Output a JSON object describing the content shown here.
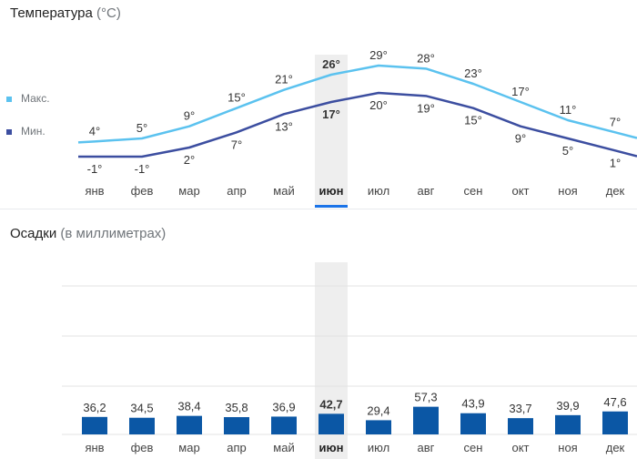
{
  "temperature": {
    "title": "Температура",
    "unit": "(°C)",
    "legend": [
      {
        "key": "max",
        "label": "Макс.",
        "color": "#5bc2ef"
      },
      {
        "key": "min",
        "label": "Мин.",
        "color": "#3c4ea0"
      }
    ]
  },
  "precipitation": {
    "title": "Осадки",
    "unit": "(в миллиметрах)"
  },
  "months": [
    "янв",
    "фев",
    "мар",
    "апр",
    "май",
    "июн",
    "июл",
    "авг",
    "сен",
    "окт",
    "ноя",
    "дек"
  ],
  "selected_index": 5,
  "chart_data": [
    {
      "type": "line",
      "title": "Температура (°C)",
      "categories": [
        "янв",
        "фев",
        "мар",
        "апр",
        "май",
        "июн",
        "июл",
        "авг",
        "сен",
        "окт",
        "ноя",
        "дек"
      ],
      "series": [
        {
          "name": "Макс.",
          "color": "#5bc2ef",
          "values": [
            4,
            5,
            9,
            15,
            21,
            26,
            29,
            28,
            23,
            17,
            11,
            7
          ],
          "labels": [
            "4°",
            "5°",
            "9°",
            "15°",
            "21°",
            "26°",
            "29°",
            "28°",
            "23°",
            "17°",
            "11°",
            "7°"
          ]
        },
        {
          "name": "Мин.",
          "color": "#3c4ea0",
          "values": [
            -1,
            -1,
            2,
            7,
            13,
            17,
            20,
            19,
            15,
            9,
            5,
            1
          ],
          "labels": [
            "-1°",
            "-1°",
            "2°",
            "7°",
            "13°",
            "17°",
            "20°",
            "19°",
            "15°",
            "9°",
            "5°",
            "1°"
          ]
        }
      ],
      "ylim": [
        -4,
        32
      ],
      "grid": false,
      "legend": "left"
    },
    {
      "type": "bar",
      "title": "Осадки (в миллиметрах)",
      "categories": [
        "янв",
        "фев",
        "мар",
        "апр",
        "май",
        "июн",
        "июл",
        "авг",
        "сен",
        "окт",
        "ноя",
        "дек"
      ],
      "values": [
        36.2,
        34.5,
        38.4,
        35.8,
        36.9,
        42.7,
        29.4,
        57.3,
        43.9,
        33.7,
        39.9,
        47.6
      ],
      "labels": [
        "36,2",
        "34,5",
        "38,4",
        "35,8",
        "36,9",
        "42,7",
        "29,4",
        "57,3",
        "43,9",
        "33,7",
        "39,9",
        "47,6"
      ],
      "color": "#0b57a5",
      "grid": true
    }
  ]
}
